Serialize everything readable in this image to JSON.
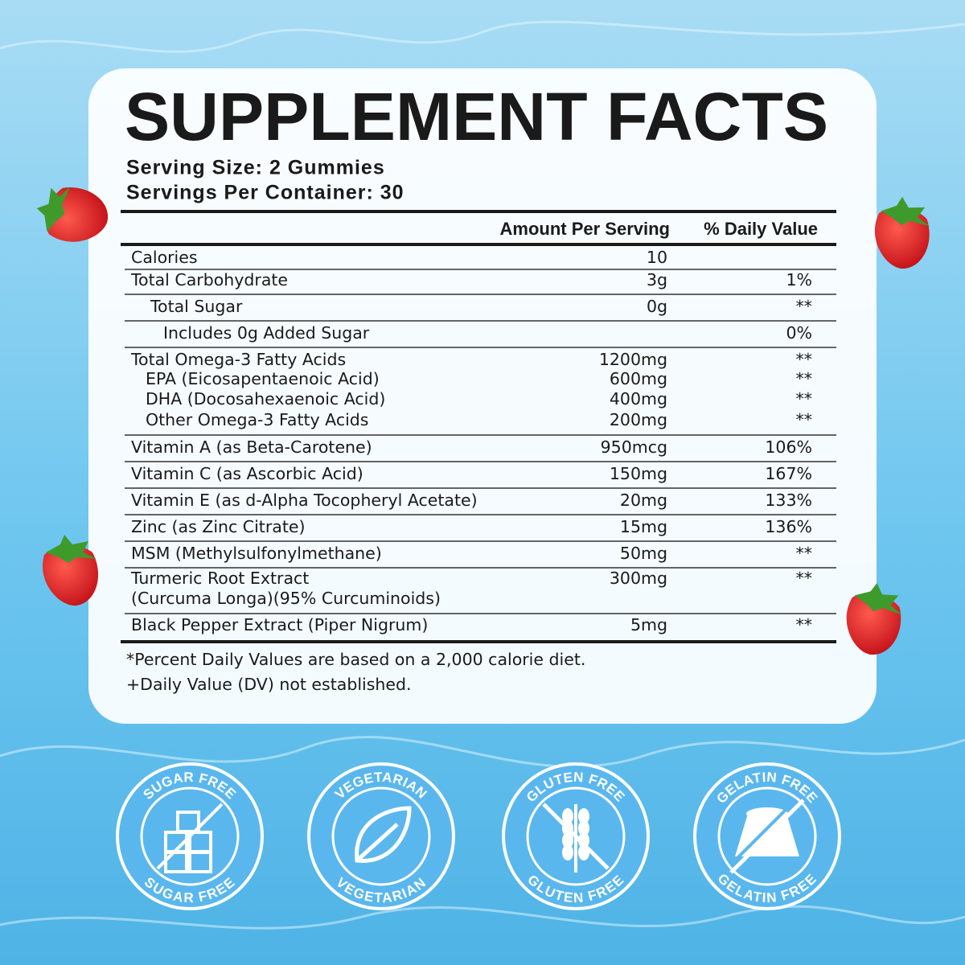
{
  "title": "SUPPLEMENT FACTS",
  "serving_size": "Serving Size: 2 Gummies",
  "servings_per_container": "Servings Per Container: 30",
  "table": {
    "headers": [
      "Amount Per Serving",
      "% Daily Value"
    ],
    "rows": [
      {
        "label": "Calories",
        "amount": "10"
      },
      {
        "label": "Total Carbohydrate",
        "amount": "3g",
        "dv": "1%"
      },
      {
        "label": "Total Sugar",
        "amount": "0g",
        "dv": "**"
      },
      {
        "label": "Includes 0g Added Sugar",
        "dv": "0%"
      },
      {
        "label": "Total Omega-3 Fatty Acids",
        "amount": "1200mg",
        "dv": "**"
      },
      {
        "label": "EPA (Eicosapentaenoic Acid)",
        "amount": "600mg",
        "dv": "**"
      },
      {
        "label": "DHA (Docosahexaenoic Acid)",
        "amount": "400mg",
        "dv": "**"
      },
      {
        "label": "Other Omega-3 Fatty Acids",
        "amount": "200mg",
        "dv": "**"
      },
      {
        "label": "Vitamin A (as Beta-Carotene)",
        "amount": "950mcg",
        "dv": "106%"
      },
      {
        "label": "Vitamin C (as Ascorbic Acid)",
        "amount": "150mg",
        "dv": "167%"
      },
      {
        "label": "Vitamin E (as d-Alpha Tocopheryl Acetate)",
        "amount": "20mg",
        "dv": "133%"
      },
      {
        "label": "Zinc (as Zinc Citrate)",
        "amount": "15mg",
        "dv": "136%"
      },
      {
        "label": "MSM (Methylsulfonylmethane)",
        "amount": "50mg",
        "dv": "**"
      },
      {
        "label": "Turmeric Root Extract",
        "sublabel": "(Curcuma Longa)(95% Curcuminoids)",
        "amount": "300mg",
        "dv": "**"
      },
      {
        "label": "Black Pepper Extract (Piper Nigrum)",
        "amount": "5mg",
        "dv": "**"
      }
    ]
  },
  "footnotes": [
    "*Percent Daily Values are based on a 2,000 calorie diet.",
    "+Daily Value (DV) not established."
  ],
  "badges": [
    {
      "top": "SUGAR FREE",
      "bottom": "SUGAR FREE"
    },
    {
      "top": "VEGETARIAN",
      "bottom": "VEGETARIAN"
    },
    {
      "top": "GLUTEN FREE",
      "bottom": "GLUTEN FREE"
    },
    {
      "top": "GELATIN FREE",
      "bottom": "GELATIN FREE"
    }
  ]
}
